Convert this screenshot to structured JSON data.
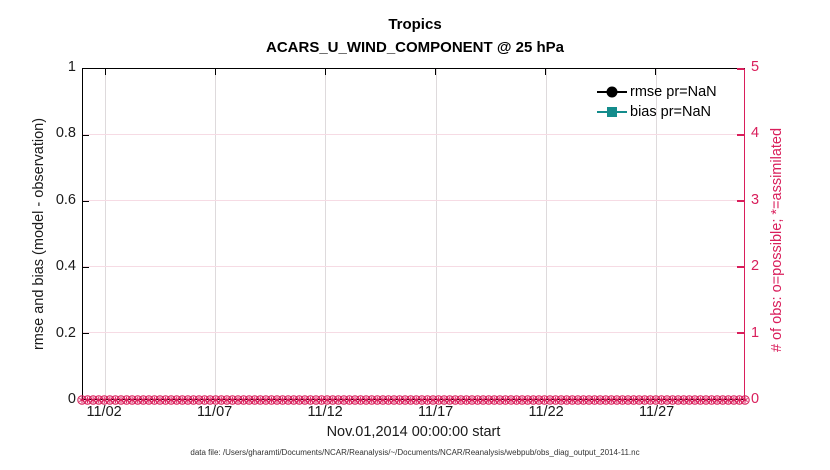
{
  "figure": {
    "footer": "data file: /Users/gharamti/Documents/NCAR/Reanalysis/~/Documents/NCAR/Reanalysis/webpub/obs_diag_output_2014-11.nc"
  },
  "colors": {
    "accent_pink": "#D91E5B",
    "bias_teal": "#148C8C",
    "rmse_black": "#000000",
    "grid_vertical": "#DEDADC",
    "grid_horizontal": "#F6DBE4"
  },
  "chart_data": {
    "type": "line",
    "title": "Tropics",
    "subtitle": "ACARS_U_WIND_COMPONENT @ 25 hPa",
    "xlabel": "Nov.01,2014 00:00:00 start",
    "ylabel_left": "rmse and bias (model - observation)",
    "ylabel_right": "# of obs: o=possible; *=assimilated",
    "x_range_days": [
      0,
      30
    ],
    "x_tick_days": [
      1,
      6,
      11,
      16,
      21,
      26
    ],
    "x_tick_labels": [
      "11/02",
      "11/07",
      "11/12",
      "11/17",
      "11/22",
      "11/27"
    ],
    "ylim_left": [
      0,
      1
    ],
    "ytick_labels_left": [
      "0",
      "0.2",
      "0.4",
      "0.6",
      "0.8",
      "1"
    ],
    "ylim_right": [
      0,
      5
    ],
    "ytick_labels_right": [
      "0",
      "1",
      "2",
      "3",
      "4",
      "5"
    ],
    "grid": true,
    "legend_position": "top-right-inside",
    "legend": [
      {
        "label": "rmse pr=NaN",
        "color": "#000000",
        "marker": "circle"
      },
      {
        "label": "bias pr=NaN",
        "color": "#148C8C",
        "marker": "square"
      }
    ],
    "series": [
      {
        "name": "rmse",
        "legend_label": "rmse pr=NaN",
        "color": "#000000",
        "marker": "circle-filled",
        "values": "NaN (no curve drawn)"
      },
      {
        "name": "bias",
        "legend_label": "bias pr=NaN",
        "color": "#148C8C",
        "marker": "square-filled",
        "values": "NaN (no curve drawn)"
      },
      {
        "name": "# of obs possible (o markers)",
        "color": "#D91E5B",
        "marker": "o",
        "constant_value": 0,
        "points": 120
      },
      {
        "name": "# of obs assimilated (* markers)",
        "color": "#D91E5B",
        "marker": "*",
        "constant_value": 0,
        "points": 120
      }
    ]
  }
}
